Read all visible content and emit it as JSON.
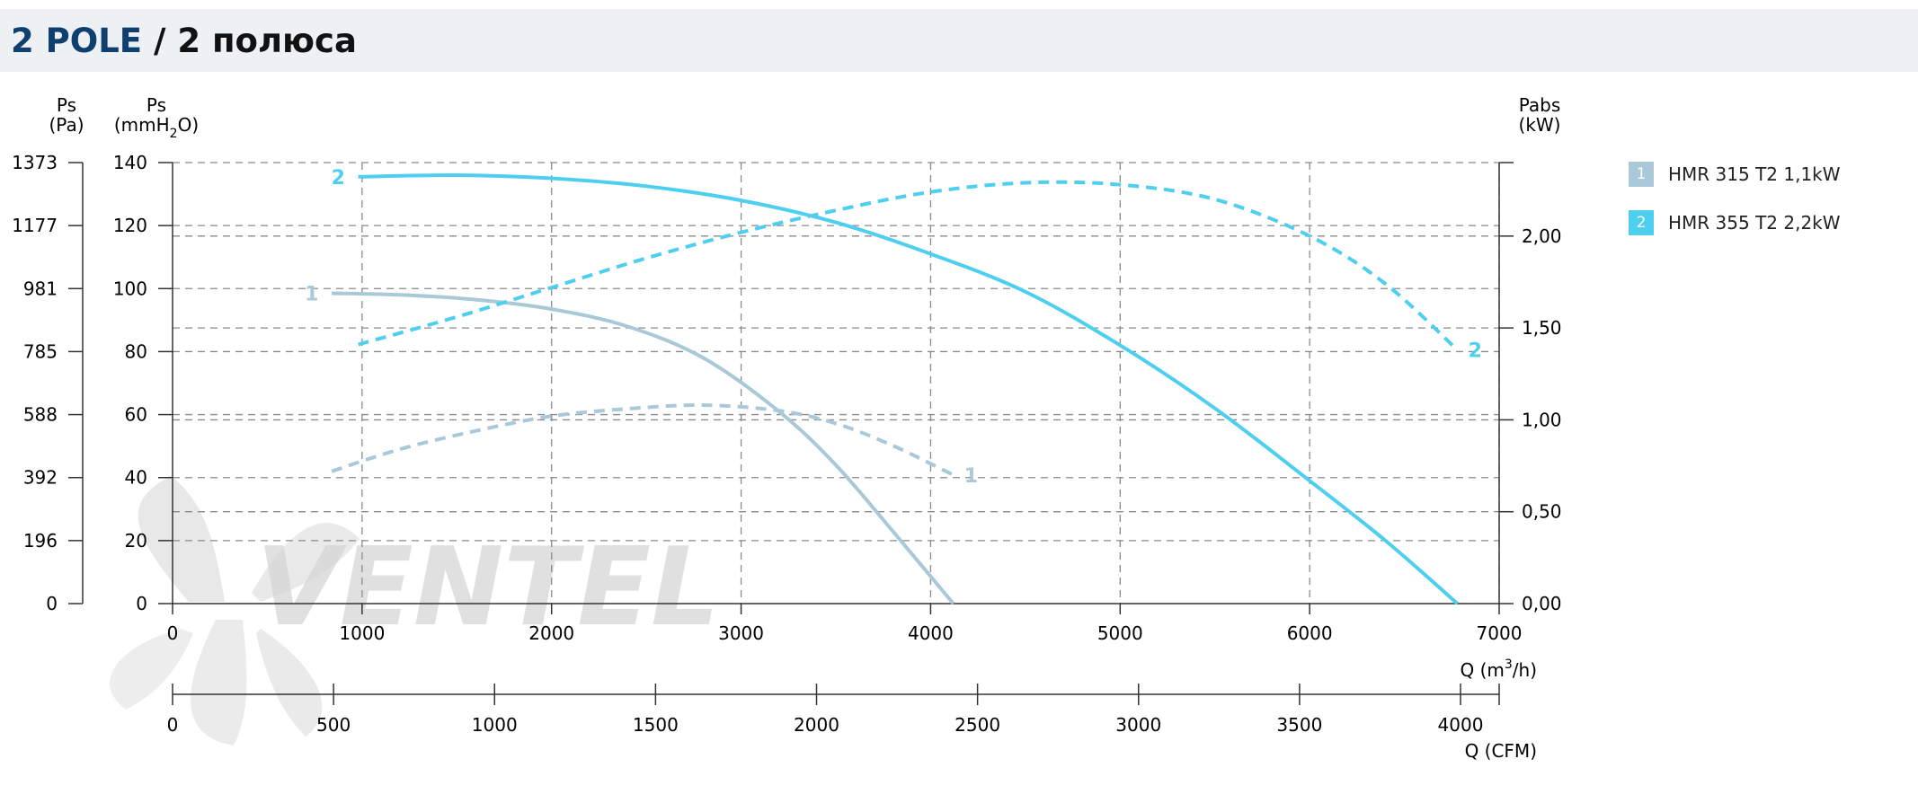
{
  "header": {
    "title_accent": "2 POLE",
    "title_rest": " / 2 полюса"
  },
  "colors": {
    "series1": "#a9c8d8",
    "series2": "#4fcff0",
    "grid": "#8a8a8a",
    "axis": "#333333",
    "header_bg": "#eef1f4",
    "title_accent": "#0e3f6e",
    "watermark": "#cfcfcf",
    "watermark_accent": "#cfe6f2"
  },
  "watermark": {
    "text": "VENTEL",
    "icon": "fan-blades-icon"
  },
  "chart_data": {
    "type": "line",
    "title": "2 POLE / 2 полюса",
    "axes": {
      "left_pa": {
        "label_line1": "Ps",
        "label_line2": "(Pa)",
        "ticks": [
          "0",
          "196",
          "392",
          "588",
          "785",
          "981",
          "1177",
          "1373"
        ]
      },
      "left_mmh2o": {
        "label_line1": "Ps",
        "label_line2_pre": "(mmH",
        "label_line2_sub": "2",
        "label_line2_post": "O)",
        "ticks": [
          "0",
          "20",
          "40",
          "60",
          "80",
          "100",
          "120",
          "140"
        ],
        "range": [
          0,
          140
        ]
      },
      "right_kw": {
        "label_line1": "Pabs",
        "label_line2": "(kW)",
        "ticks": [
          "0,00",
          "0,50",
          "1,00",
          "1,50",
          "2,00"
        ],
        "range": [
          0,
          2.4
        ]
      },
      "x_m3h": {
        "label_pre": "Q (m",
        "label_sup": "3",
        "label_post": "/h)",
        "ticks": [
          "0",
          "1000",
          "2000",
          "3000",
          "4000",
          "5000",
          "6000",
          "7000"
        ],
        "range": [
          0,
          7000
        ]
      },
      "x_cfm": {
        "label": "Q (CFM)",
        "ticks": [
          "0",
          "500",
          "1000",
          "1500",
          "2000",
          "2500",
          "3000",
          "3500",
          "4000"
        ],
        "range": [
          0,
          4120
        ]
      }
    },
    "grid": true,
    "legend": {
      "placement": "right",
      "items": [
        {
          "num": "1",
          "label": "HMR 315 T2 1,1kW"
        },
        {
          "num": "2",
          "label": "HMR 355 T2 2,2kW"
        }
      ]
    },
    "series": [
      {
        "name": "HMR 315 T2 1,1kW",
        "marker": "1",
        "kind": "pressure",
        "unit": "mmH2O",
        "x": [
          840,
          1200,
          1600,
          2000,
          2400,
          2800,
          3200,
          3500,
          3800,
          4120
        ],
        "y": [
          98.5,
          98,
          96.5,
          93.5,
          88,
          78,
          61,
          44,
          23,
          0
        ]
      },
      {
        "name": "HMR 315 T2 1,1kW",
        "marker": "1",
        "kind": "power",
        "unit": "kW",
        "x": [
          840,
          1200,
          1600,
          2000,
          2400,
          2800,
          3200,
          3500,
          3800,
          4120
        ],
        "y": [
          0.72,
          0.84,
          0.94,
          1.02,
          1.06,
          1.08,
          1.05,
          0.98,
          0.86,
          0.7
        ]
      },
      {
        "name": "HMR 355 T2 2,2kW",
        "marker": "2",
        "kind": "pressure",
        "unit": "mmH2O",
        "x": [
          980,
          1500,
          2000,
          2500,
          3000,
          3500,
          4000,
          4500,
          5000,
          5500,
          6000,
          6400,
          6780
        ],
        "y": [
          135.5,
          136,
          135,
          132.5,
          128,
          121,
          111,
          99,
          82,
          62,
          39,
          20,
          0
        ]
      },
      {
        "name": "HMR 355 T2 2,2kW",
        "marker": "2",
        "kind": "power",
        "unit": "kW",
        "x": [
          980,
          1500,
          2000,
          2500,
          3000,
          3500,
          4000,
          4500,
          5000,
          5500,
          6000,
          6400,
          6780
        ],
        "y": [
          1.41,
          1.56,
          1.72,
          1.88,
          2.02,
          2.14,
          2.24,
          2.29,
          2.28,
          2.2,
          2.0,
          1.74,
          1.38
        ]
      }
    ]
  }
}
